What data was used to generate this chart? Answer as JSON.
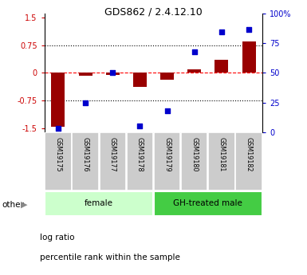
{
  "title": "GDS862 / 2.4.12.10",
  "samples": [
    "GSM19175",
    "GSM19176",
    "GSM19177",
    "GSM19178",
    "GSM19179",
    "GSM19180",
    "GSM19181",
    "GSM19182"
  ],
  "log_ratio": [
    -1.45,
    -0.08,
    -0.05,
    -0.38,
    -0.18,
    0.1,
    0.35,
    0.85
  ],
  "percentile_rank": [
    3,
    25,
    50,
    5,
    18,
    68,
    85,
    87
  ],
  "groups": [
    {
      "label": "female",
      "start": 0,
      "end": 4,
      "color": "#ccffcc"
    },
    {
      "label": "GH-treated male",
      "start": 4,
      "end": 8,
      "color": "#44cc44"
    }
  ],
  "ylim_left": [
    -1.6,
    1.6
  ],
  "ylim_right": [
    0,
    100
  ],
  "yticks_left": [
    -1.5,
    -0.75,
    0,
    0.75,
    1.5
  ],
  "yticks_right": [
    0,
    25,
    50,
    75,
    100
  ],
  "ytick_labels_left": [
    "-1.5",
    "-0.75",
    "0",
    "0.75",
    "1.5"
  ],
  "ytick_labels_right": [
    "0",
    "25",
    "50",
    "75",
    "100%"
  ],
  "hlines_dotted": [
    0.75,
    -0.75
  ],
  "hline_dashed": 0,
  "bar_color": "#990000",
  "dot_color": "#0000cc",
  "bar_width": 0.5,
  "dot_size": 25,
  "left_label_color": "#cc0000",
  "right_label_color": "#0000cc",
  "legend_log_ratio": "log ratio",
  "legend_percentile": "percentile rank within the sample",
  "other_label": "other",
  "bg_color": "#ffffff",
  "tick_label_box_color": "#cccccc"
}
